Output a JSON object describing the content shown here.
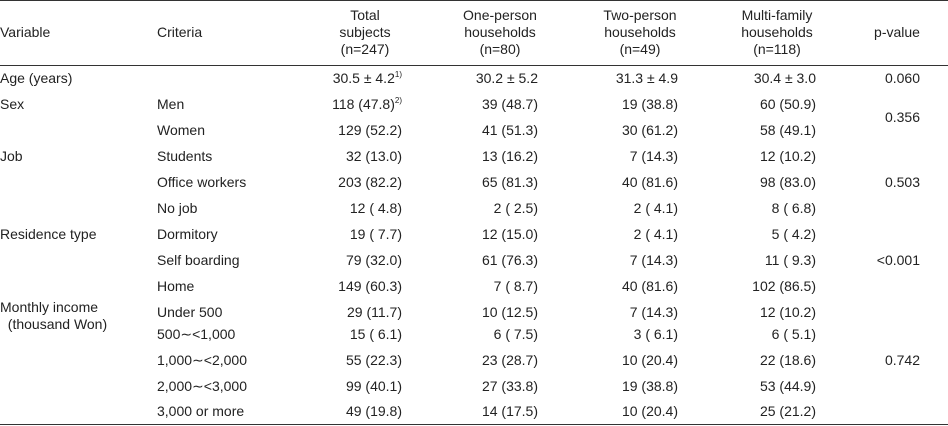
{
  "headers": {
    "variable": "Variable",
    "criteria": "Criteria",
    "total": [
      "Total",
      "subjects",
      "(n=247)"
    ],
    "one": [
      "One-person",
      "households",
      "(n=80)"
    ],
    "two": [
      "Two-person",
      "households",
      "(n=49)"
    ],
    "multi": [
      "Multi-family",
      "households",
      "(n=118)"
    ],
    "p": "p-value"
  },
  "footnote_marks": {
    "fn1": "1)",
    "fn2": "2)"
  },
  "rows": [
    {
      "variable": "Age (years)",
      "criteria": "",
      "total": "30.5 ± 4.2",
      "one": "30.2 ± 5.2",
      "two": "31.3 ± 4.9",
      "multi": "30.4 ± 3.0",
      "p": "0.060"
    },
    {
      "variable": "Sex",
      "criteria": "Men",
      "total": "118 (47.8)",
      "one": "39 (48.7)",
      "two": "19 (38.8)",
      "multi": "60 (50.9)"
    },
    {
      "variable": "",
      "criteria": "Women",
      "total": "129 (52.2)",
      "one": "41 (51.3)",
      "two": "30 (61.2)",
      "multi": "58 (49.1)"
    },
    {
      "variable": "Job",
      "criteria": "Students",
      "total": "32 (13.0)",
      "one": "13 (16.2)",
      "two": "7 (14.3)",
      "multi": "12 (10.2)"
    },
    {
      "variable": "",
      "criteria": "Office workers",
      "total": "203 (82.2)",
      "one": "65 (81.3)",
      "two": "40 (81.6)",
      "multi": "98 (83.0)"
    },
    {
      "variable": "",
      "criteria": "No job",
      "total": "12 ( 4.8)",
      "one": "2 ( 2.5)",
      "two": "2 ( 4.1)",
      "multi": "8 ( 6.8)"
    },
    {
      "variable": "Residence type",
      "criteria": "Dormitory",
      "total": "19 ( 7.7)",
      "one": "12 (15.0)",
      "two": "2 ( 4.1)",
      "multi": "5 ( 4.2)"
    },
    {
      "variable": "",
      "criteria": "Self boarding",
      "total": "79 (32.0)",
      "one": "61 (76.3)",
      "two": "7 (14.3)",
      "multi": "11 ( 9.3)"
    },
    {
      "variable": "",
      "criteria": "Home",
      "total": "149 (60.3)",
      "one": "7 ( 8.7)",
      "two": "40 (81.6)",
      "multi": "102 (86.5)"
    },
    {
      "variable": "Monthly income\n  (thousand Won)",
      "criteria": "Under 500",
      "total": "29 (11.7)",
      "one": "10 (12.5)",
      "two": "7 (14.3)",
      "multi": "12 (10.2)"
    },
    {
      "variable": "",
      "criteria": "500∼<1,000",
      "total": "15 ( 6.1)",
      "one": "6 ( 7.5)",
      "two": "3 ( 6.1)",
      "multi": "6 ( 5.1)"
    },
    {
      "variable": "",
      "criteria": "1,000∼<2,000",
      "total": "55 (22.3)",
      "one": "23 (28.7)",
      "two": "10 (20.4)",
      "multi": "22 (18.6)"
    },
    {
      "variable": "",
      "criteria": "2,000∼<3,000",
      "total": "99 (40.1)",
      "one": "27 (33.8)",
      "two": "19 (38.8)",
      "multi": "53 (44.9)"
    },
    {
      "variable": "",
      "criteria": "3,000 or more",
      "total": "49 (19.8)",
      "one": "14 (17.5)",
      "two": "10 (20.4)",
      "multi": "25 (21.2)"
    }
  ],
  "pvalues": {
    "sex": "0.356",
    "job": "0.503",
    "residence": "<0.001",
    "income": "0.742"
  }
}
